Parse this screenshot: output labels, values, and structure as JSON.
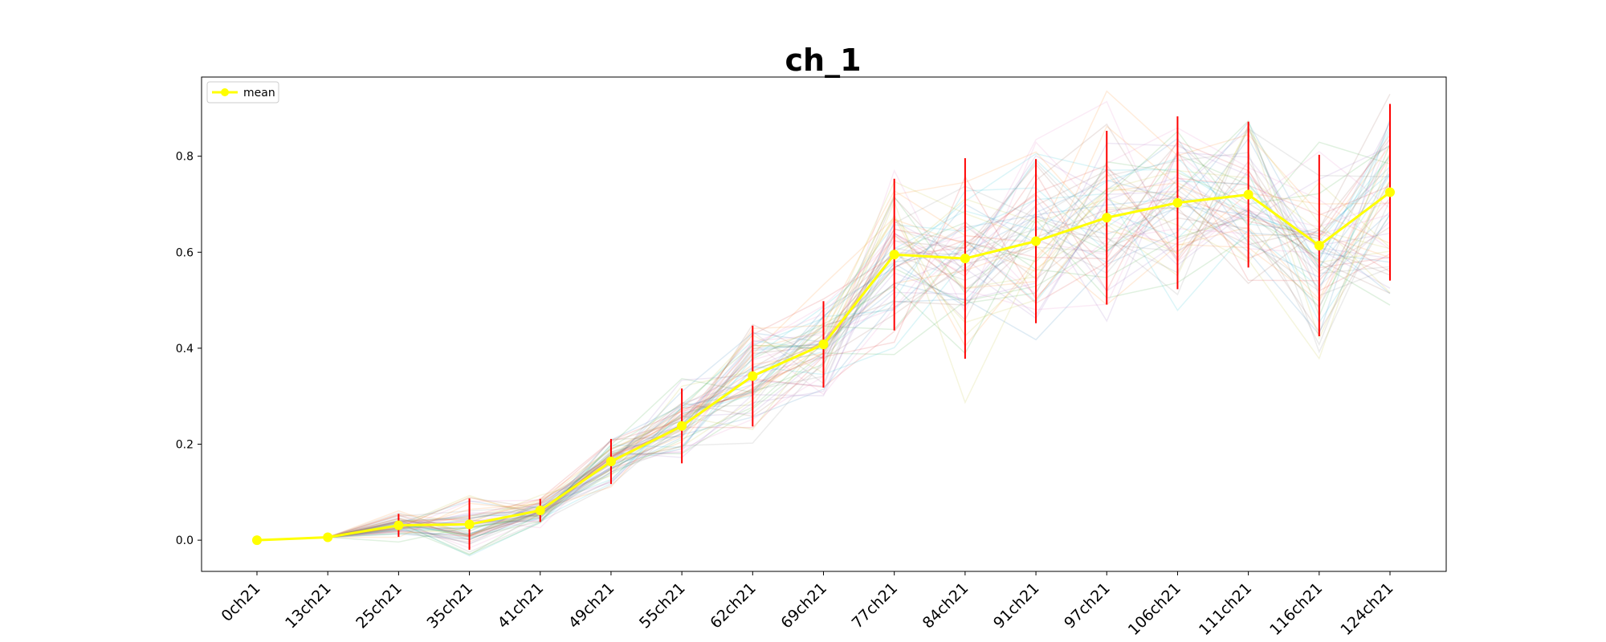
{
  "chart_data": {
    "type": "line",
    "title": "ch_1",
    "categories": [
      "0ch21",
      "13ch21",
      "25ch21",
      "35ch21",
      "41ch21",
      "49ch21",
      "55ch21",
      "62ch21",
      "69ch21",
      "77ch21",
      "84ch21",
      "91ch21",
      "97ch21",
      "106ch21",
      "111ch21",
      "116ch21",
      "124ch21"
    ],
    "ylim": [
      -0.065,
      0.965
    ],
    "yticks": [
      0.0,
      0.2,
      0.4,
      0.6,
      0.8
    ],
    "ytick_labels": [
      "0.0",
      "0.2",
      "0.4",
      "0.6",
      "0.8"
    ],
    "grid": false,
    "legend": {
      "placement": "top-left",
      "entries": [
        "mean"
      ]
    },
    "series": [
      {
        "name": "mean",
        "color": "#ffff00",
        "marker": "circle",
        "values": [
          0.0,
          0.006,
          0.031,
          0.033,
          0.062,
          0.164,
          0.238,
          0.342,
          0.408,
          0.595,
          0.587,
          0.623,
          0.672,
          0.703,
          0.72,
          0.614,
          0.725
        ],
        "error_low": [
          0.0,
          0.006,
          0.007,
          -0.02,
          0.038,
          0.117,
          0.16,
          0.237,
          0.318,
          0.437,
          0.378,
          0.452,
          0.491,
          0.523,
          0.568,
          0.425,
          0.541
        ],
        "error_high": [
          0.0,
          0.006,
          0.055,
          0.087,
          0.086,
          0.211,
          0.316,
          0.447,
          0.498,
          0.753,
          0.796,
          0.794,
          0.853,
          0.883,
          0.872,
          0.803,
          0.909
        ],
        "error_color": "#ff0000"
      }
    ],
    "background_lines_count": 60,
    "background_lines_opacity": 0.15
  }
}
